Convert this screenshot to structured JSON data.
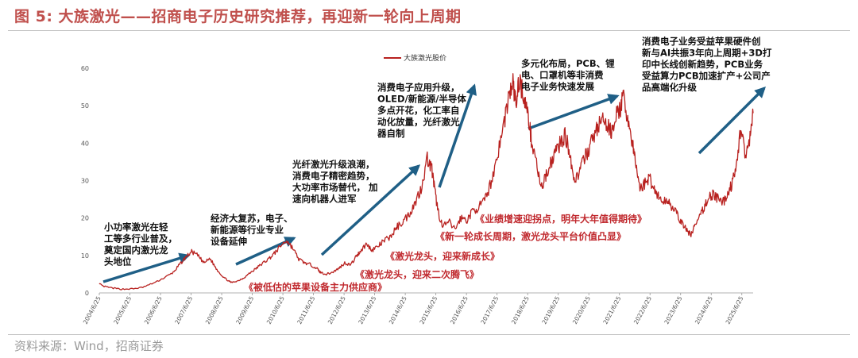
{
  "figure": {
    "title": "图 5:  大族激光——招商电子历史研究推荐，再迎新一轮向上周期",
    "source": "资料来源：Wind，招商证券"
  },
  "chart_data": {
    "type": "line",
    "series": [
      {
        "name": "大族激光股价",
        "color": "#b8211f"
      }
    ],
    "ylim": [
      0,
      60
    ],
    "yticks": [
      0,
      10,
      20,
      30,
      40,
      50,
      60
    ],
    "x_tick_labels": [
      "2004/6/25",
      "2005/6/25",
      "2006/6/25",
      "2007/6/25",
      "2008/6/25",
      "2009/6/25",
      "2010/6/25",
      "2011/6/25",
      "2012/6/25",
      "2013/6/25",
      "2014/6/25",
      "2015/6/25",
      "2016/6/25",
      "2017/6/25",
      "2018/6/25",
      "2019/6/25",
      "2020/6/25",
      "2021/6/25",
      "2022/6/25",
      "2023/6/25",
      "2024/6/25",
      "2025/6/25"
    ],
    "x": [
      2004.48,
      2004.6,
      2004.9,
      2005.2,
      2005.6,
      2005.9,
      2006.3,
      2006.6,
      2006.9,
      2007.1,
      2007.3,
      2007.5,
      2007.7,
      2007.9,
      2008.1,
      2008.3,
      2008.5,
      2008.7,
      2008.8,
      2009.0,
      2009.2,
      2009.4,
      2009.6,
      2009.8,
      2010.0,
      2010.2,
      2010.4,
      2010.6,
      2010.8,
      2011.0,
      2011.2,
      2011.4,
      2011.6,
      2011.7,
      2011.9,
      2012.1,
      2012.3,
      2012.5,
      2012.7,
      2012.9,
      2013.0,
      2013.2,
      2013.4,
      2013.6,
      2013.8,
      2014.0,
      2014.2,
      2014.4,
      2014.6,
      2014.8,
      2015.0,
      2015.2,
      2015.35,
      2015.45,
      2015.55,
      2015.7,
      2015.9,
      2016.1,
      2016.3,
      2016.5,
      2016.7,
      2016.9,
      2017.1,
      2017.3,
      2017.5,
      2017.7,
      2017.85,
      2018.0,
      2018.1,
      2018.2,
      2018.35,
      2018.5,
      2018.6,
      2018.75,
      2018.9,
      2019.0,
      2019.1,
      2019.25,
      2019.4,
      2019.55,
      2019.7,
      2019.85,
      2020.0,
      2020.15,
      2020.3,
      2020.45,
      2020.6,
      2020.75,
      2020.9,
      2021.05,
      2021.2,
      2021.35,
      2021.5,
      2021.6,
      2021.75,
      2021.9,
      2022.0,
      2022.15,
      2022.3,
      2022.45,
      2022.6,
      2022.75,
      2022.9,
      2023.05,
      2023.2,
      2023.35,
      2023.5,
      2023.65,
      2023.8,
      2023.95,
      2024.1,
      2024.25,
      2024.4,
      2024.55,
      2024.7,
      2024.85,
      2025.0,
      2025.15,
      2025.3,
      2025.45,
      2025.6,
      2025.75,
      2025.85
    ],
    "y": [
      2.5,
      1.8,
      1.3,
      1.0,
      1.1,
      1.5,
      2.8,
      4.0,
      5.5,
      7.5,
      9.5,
      11.0,
      10.0,
      8.0,
      9.2,
      6.5,
      4.5,
      3.2,
      2.8,
      3.2,
      4.0,
      5.3,
      6.5,
      7.8,
      9.0,
      10.5,
      12.5,
      14.0,
      12.0,
      9.0,
      8.0,
      7.5,
      6.5,
      5.5,
      5.0,
      5.5,
      6.5,
      8.0,
      7.5,
      10.0,
      11.0,
      13.0,
      11.5,
      12.5,
      14.0,
      15.0,
      17.5,
      19.0,
      21.0,
      24.0,
      28.0,
      36.0,
      33.0,
      27.0,
      22.0,
      17.5,
      19.0,
      17.0,
      20.0,
      19.5,
      22.0,
      23.0,
      25.0,
      30.0,
      37.0,
      45.0,
      52.0,
      56.0,
      50.0,
      57.0,
      53.0,
      47.0,
      41.0,
      36.0,
      28.0,
      29.0,
      32.0,
      35.0,
      38.0,
      40.0,
      42.0,
      38.0,
      30.0,
      32.0,
      35.0,
      38.0,
      41.0,
      44.0,
      46.0,
      45.0,
      43.0,
      47.0,
      49.0,
      52.0,
      47.0,
      40.0,
      35.0,
      28.0,
      29.0,
      31.0,
      28.0,
      26.0,
      24.0,
      25.0,
      23.0,
      21.0,
      19.0,
      17.0,
      15.5,
      18.0,
      20.0,
      23.0,
      25.5,
      26.5,
      25.0,
      24.0,
      26.0,
      29.0,
      33.0,
      45.0,
      36.0,
      41.0,
      48.0
    ],
    "annotations": {
      "a1": [
        "小功率激光在轻",
        "工等多行业普及，",
        "奠定国内激光龙",
        "头地位"
      ],
      "a2": [
        "经济大复苏，电子、",
        "新能源等行业专业",
        "设备延伸"
      ],
      "a3": [
        "光纤激光升级浪潮，",
        "消费电子精密趋势，",
        "大功率市场替代，  加",
        "速向机器人进军"
      ],
      "a4": [
        "消费电子应用升级，",
        "OLED/新能源/半导体",
        "多点开花，化工率自",
        "动化放量，光纤激光",
        "器自制"
      ],
      "a5": [
        "多元化布局，PCB、锂",
        "电、口罩机等非消费",
        "电子业务快速发展"
      ],
      "a6": [
        "消费电子业务受益苹果硬件创",
        "新与AI共振3年向上周期+3D打",
        "印中长线创新趋势，PCB业务",
        "受益算力PCB加速扩产+公司产",
        "品高端化升级"
      ],
      "r1": "《被低估的苹果设备主力供应商》",
      "r2": "《激光龙头，迎来二次腾飞》",
      "r3": "《激光龙头，迎来新成长》",
      "r4": "《新一轮成长周期，激光龙头平台价值凸显》",
      "r5": "《业绩增速迎拐点，明年大年值得期待》"
    },
    "arrow_color": "#1f5f86",
    "red_text_color": "#c0282d",
    "grid": false,
    "legend_position": "top-center"
  }
}
